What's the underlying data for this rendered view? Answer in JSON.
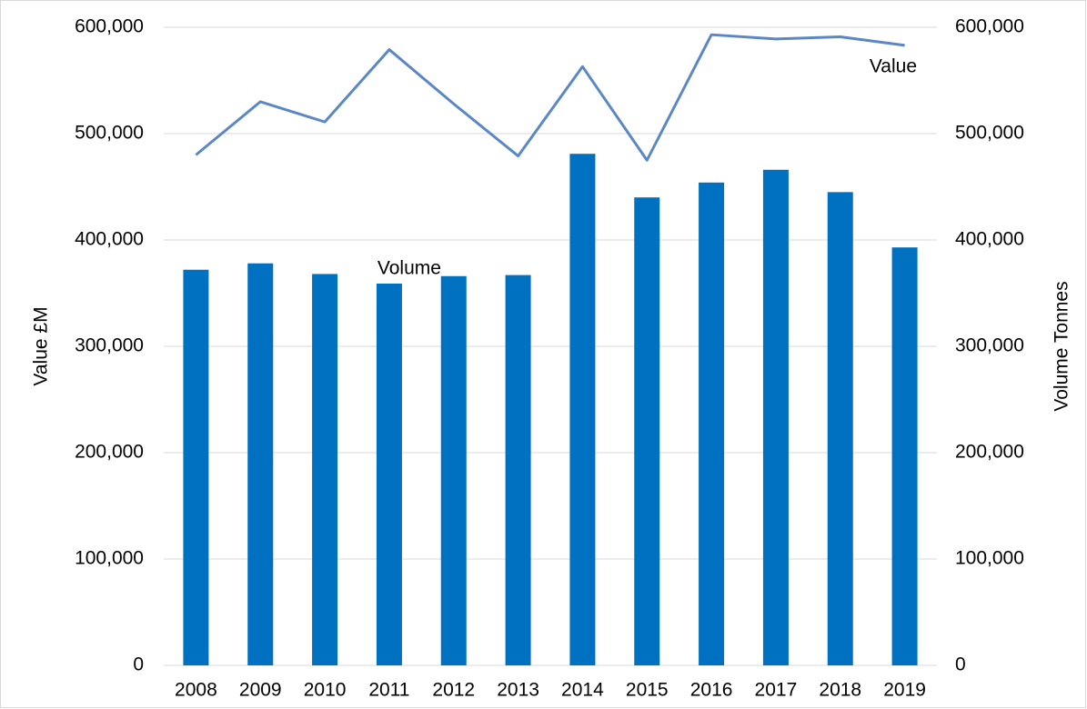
{
  "chart_data": {
    "type": "combo",
    "categories": [
      "2008",
      "2009",
      "2010",
      "2011",
      "2012",
      "2013",
      "2014",
      "2015",
      "2016",
      "2017",
      "2018",
      "2019"
    ],
    "series": [
      {
        "name": "Volume",
        "type": "bar",
        "axis": "y2",
        "color": "#0070c0",
        "values": [
          372000,
          378000,
          368000,
          359000,
          366000,
          367000,
          481000,
          440000,
          454000,
          466000,
          445000,
          393000
        ]
      },
      {
        "name": "Value",
        "type": "line",
        "axis": "y",
        "color": "#5b87c5",
        "values": [
          480000,
          530000,
          511000,
          579000,
          528000,
          479000,
          563000,
          475000,
          593000,
          589000,
          591000,
          583000
        ]
      }
    ],
    "ylabel": "Value £M",
    "y2label": "Volume Tonnes",
    "ylim": [
      0,
      600000
    ],
    "yticks": [
      0,
      {
        "value": 100000,
        "label": "100,000"
      },
      {
        "value": 200000,
        "label": "200,000"
      },
      {
        "value": 300000,
        "label": "300,000"
      },
      {
        "value": 400000,
        "label": "400,000"
      },
      {
        "value": 500000,
        "label": "500,000"
      },
      {
        "value": 600000,
        "label": "600,000"
      }
    ],
    "y2lim": [
      0,
      600000
    ],
    "y2ticks": [
      0,
      {
        "value": 100000,
        "label": "100,000"
      },
      {
        "value": 200000,
        "label": "200,000"
      },
      {
        "value": 300000,
        "label": "300,000"
      },
      {
        "value": 400000,
        "label": "400,000"
      },
      {
        "value": 500000,
        "label": "500,000"
      },
      {
        "value": 600000,
        "label": "600,000"
      }
    ],
    "grid": true
  }
}
